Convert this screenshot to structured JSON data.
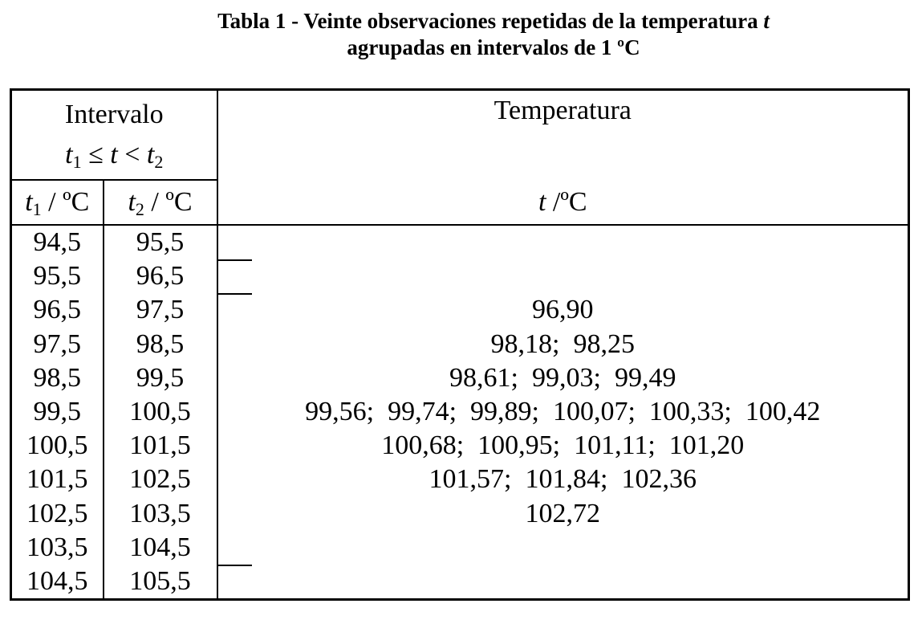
{
  "caption": {
    "line1_text": "Tabla 1 - Veinte observaciones repetidas de la temperatura ",
    "line1_var": "t",
    "line2": "agrupadas en intervalos de 1 ºC"
  },
  "header": {
    "intervalo_label": "Intervalo",
    "relation": {
      "a": "t",
      "a_sub": "1",
      "op1": " ≤ ",
      "b": "t",
      "op2": " < ",
      "c": "t",
      "c_sub": "2"
    },
    "t1_col": {
      "var": "t",
      "sub": "1",
      "unit": " / ºC"
    },
    "t2_col": {
      "var": "t",
      "sub": "2",
      "unit": " / ºC"
    },
    "temperatura_label": "Temperatura",
    "t_col": {
      "var": "t",
      "unit": " /ºC"
    }
  },
  "rows": [
    {
      "t1": "94,5",
      "t2": "95,5",
      "temps": ""
    },
    {
      "t1": "95,5",
      "t2": "96,5",
      "temps": ""
    },
    {
      "t1": "96,5",
      "t2": "97,5",
      "temps": "96,90"
    },
    {
      "t1": "97,5",
      "t2": "98,5",
      "temps": "98,18;  98,25"
    },
    {
      "t1": "98,5",
      "t2": "99,5",
      "temps": "98,61;  99,03;  99,49"
    },
    {
      "t1": "99,5",
      "t2": "100,5",
      "temps": "99,56;  99,74;  99,89;  100,07;  100,33;  100,42"
    },
    {
      "t1": "100,5",
      "t2": "101,5",
      "temps": "100,68;  100,95;  101,11;  101,20"
    },
    {
      "t1": "101,5",
      "t2": "102,5",
      "temps": "101,57;  101,84;  102,36"
    },
    {
      "t1": "102,5",
      "t2": "103,5",
      "temps": "102,72"
    },
    {
      "t1": "103,5",
      "t2": "104,5",
      "temps": ""
    },
    {
      "t1": "104,5",
      "t2": "105,5",
      "temps": ""
    }
  ]
}
